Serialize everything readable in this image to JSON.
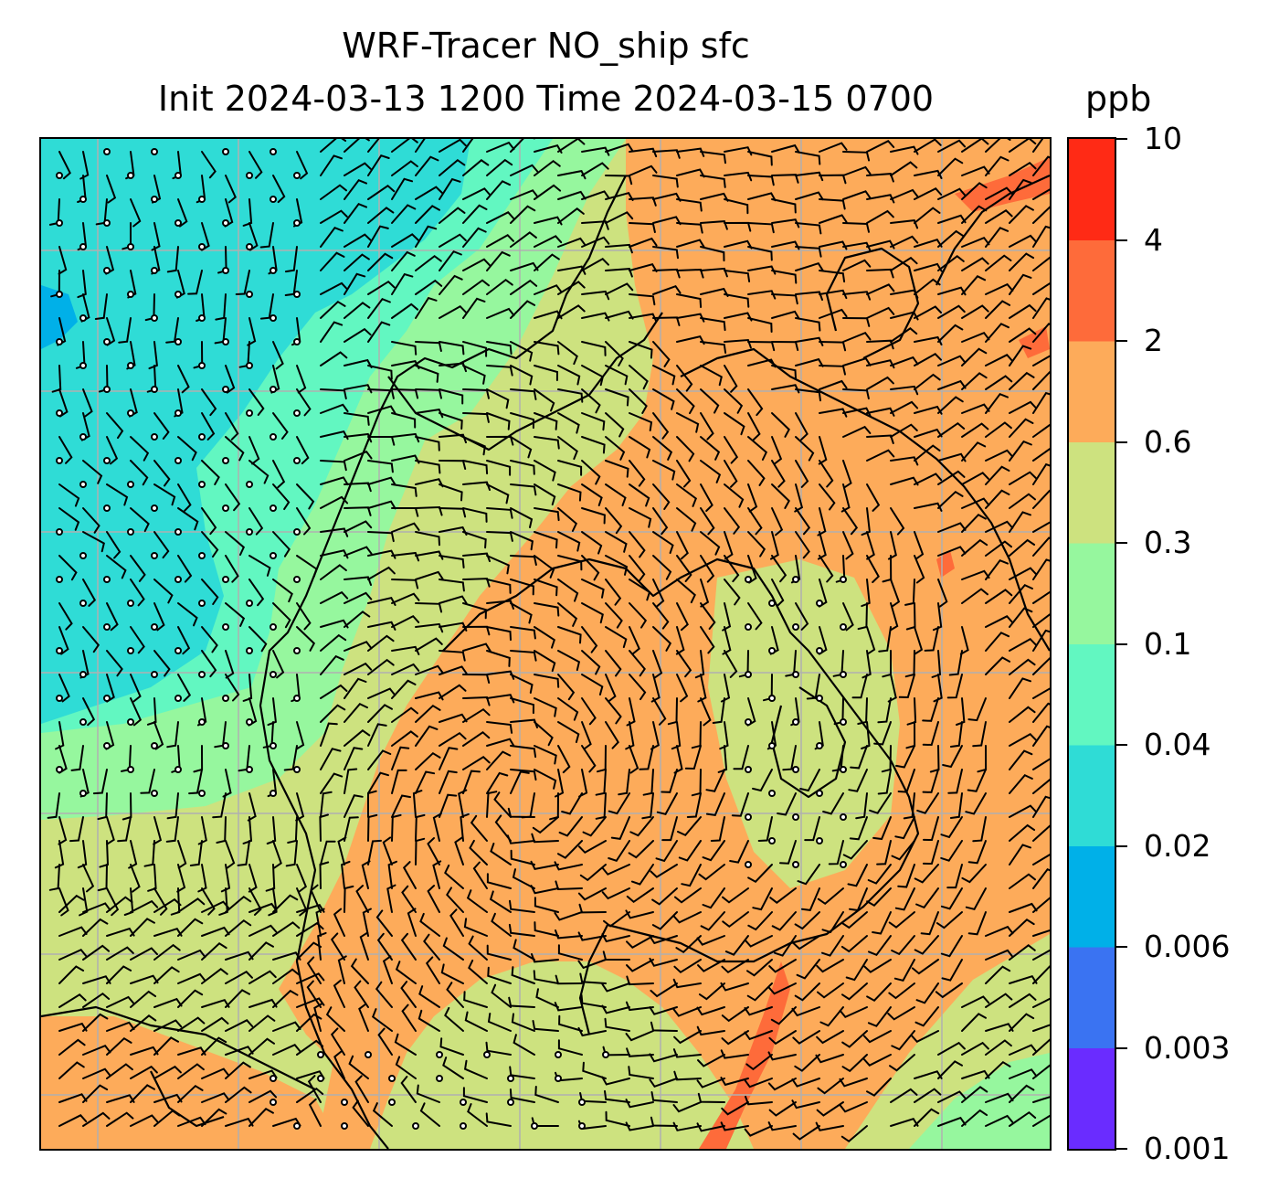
{
  "title": {
    "line1": "WRF-Tracer NO_ship sfc",
    "line2": "Init 2024-03-13 1200 Time 2024-03-15 0700",
    "units": "ppb"
  },
  "colorbar": {
    "levels": [
      "0.001",
      "0.003",
      "0.006",
      "0.02",
      "0.04",
      "0.1",
      "0.3",
      "0.6",
      "2",
      "4",
      "10"
    ],
    "colors": [
      "#6a2cff",
      "#3a73f2",
      "#00b0e8",
      "#2fdcd6",
      "#62f7c1",
      "#96f79e",
      "#cde27f",
      "#fdab5a",
      "#fe6b3a",
      "#ff2a15"
    ]
  },
  "map": {
    "colors": {
      "background": "#cde27f",
      "low": "#96f79e",
      "mid": "#62f7c1",
      "lower": "#2fdcd6",
      "lowest": "#00b0e8",
      "high": "#fdab5a",
      "higher": "#fe6b3a",
      "grid": "#b0b0b0",
      "coast": "#000000",
      "barb": "#000000"
    }
  }
}
